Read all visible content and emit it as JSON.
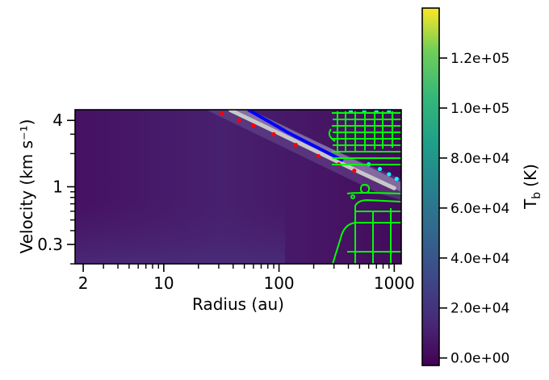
{
  "chart_data": {
    "type": "heatmap",
    "title": "",
    "xlabel": "Radius (au)",
    "ylabel": "Velocity (km s⁻¹)",
    "x_scale": "log",
    "y_scale": "log",
    "xlim": [
      1.7,
      1150
    ],
    "ylim": [
      0.2,
      5.0
    ],
    "x_ticks": [
      {
        "value": 2,
        "label": "2"
      },
      {
        "value": 10,
        "label": "10"
      },
      {
        "value": 100,
        "label": "100"
      },
      {
        "value": 1000,
        "label": "1000"
      }
    ],
    "y_ticks": [
      {
        "value": 0.3,
        "label": "0.3"
      },
      {
        "value": 1,
        "label": "1"
      },
      {
        "value": 4,
        "label": "4"
      }
    ],
    "colorbar": {
      "label": "Tₕ (K)",
      "label_main": "T",
      "label_sub": "b",
      "label_unit": "(K)",
      "colormap": "viridis",
      "range": [
        -3000,
        140000
      ],
      "ticks": [
        {
          "value": 0,
          "label": "0.0e+00"
        },
        {
          "value": 20000,
          "label": "2.0e+04"
        },
        {
          "value": 40000,
          "label": "4.0e+04"
        },
        {
          "value": 60000,
          "label": "6.0e+04"
        },
        {
          "value": 80000,
          "label": "8.0e+04"
        },
        {
          "value": 100000,
          "label": "1.0e+05"
        },
        {
          "value": 120000,
          "label": "1.2e+05"
        }
      ]
    },
    "series": [
      {
        "name": "keplerian-curve-white",
        "color": "#c8c8c8",
        "points": [
          [
            38,
            4.95
          ],
          [
            100,
            3.05
          ],
          [
            400,
            1.52
          ],
          [
            1000,
            0.97
          ]
        ]
      },
      {
        "name": "keplerian-curve-blue",
        "color": "#0000ff",
        "points": [
          [
            55,
            4.95
          ],
          [
            120,
            3.1
          ],
          [
            350,
            1.75
          ]
        ]
      },
      {
        "name": "peak-points-red",
        "color": "#ff0000",
        "points": [
          [
            32,
            4.6
          ],
          [
            45,
            4.0
          ],
          [
            60,
            3.6
          ],
          [
            90,
            3.0
          ],
          [
            140,
            2.4
          ],
          [
            220,
            1.9
          ],
          [
            330,
            1.6
          ],
          [
            450,
            1.4
          ]
        ]
      },
      {
        "name": "peak-points-cyan",
        "color": "#00ffff",
        "points": [
          [
            420,
            4.8
          ],
          [
            550,
            4.8
          ],
          [
            700,
            4.8
          ],
          [
            900,
            4.8
          ],
          [
            600,
            1.6
          ],
          [
            750,
            1.45
          ],
          [
            900,
            1.3
          ],
          [
            1050,
            1.18
          ]
        ]
      }
    ],
    "contours": {
      "color": "#00ff00",
      "description": "green contour levels at large radius"
    }
  }
}
